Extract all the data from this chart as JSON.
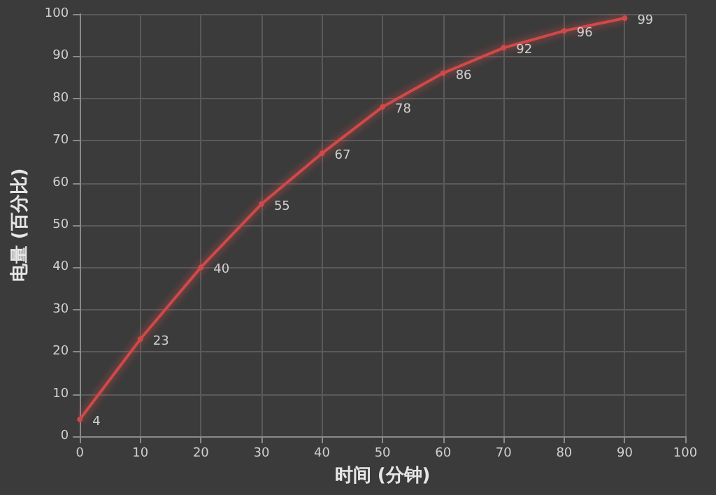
{
  "chart_data": {
    "type": "line",
    "xlabel": "时间 (分钟)",
    "ylabel": "电量 (百分比)",
    "x": [
      0,
      10,
      20,
      30,
      40,
      50,
      60,
      70,
      80,
      90
    ],
    "series": [
      {
        "color": "#d04848",
        "values": [
          4,
          23,
          40,
          55,
          67,
          78,
          86,
          92,
          96,
          99
        ]
      }
    ],
    "xlim": [
      0,
      100
    ],
    "xticks": [
      0,
      10,
      20,
      30,
      40,
      50,
      60,
      70,
      80,
      90,
      100
    ],
    "ylim": [
      0,
      100
    ],
    "yticks": [
      0,
      10,
      20,
      30,
      40,
      50,
      60,
      70,
      80,
      90,
      100
    ],
    "grid": true,
    "marker": "circle",
    "line_style": "solid",
    "data_labels": true
  }
}
